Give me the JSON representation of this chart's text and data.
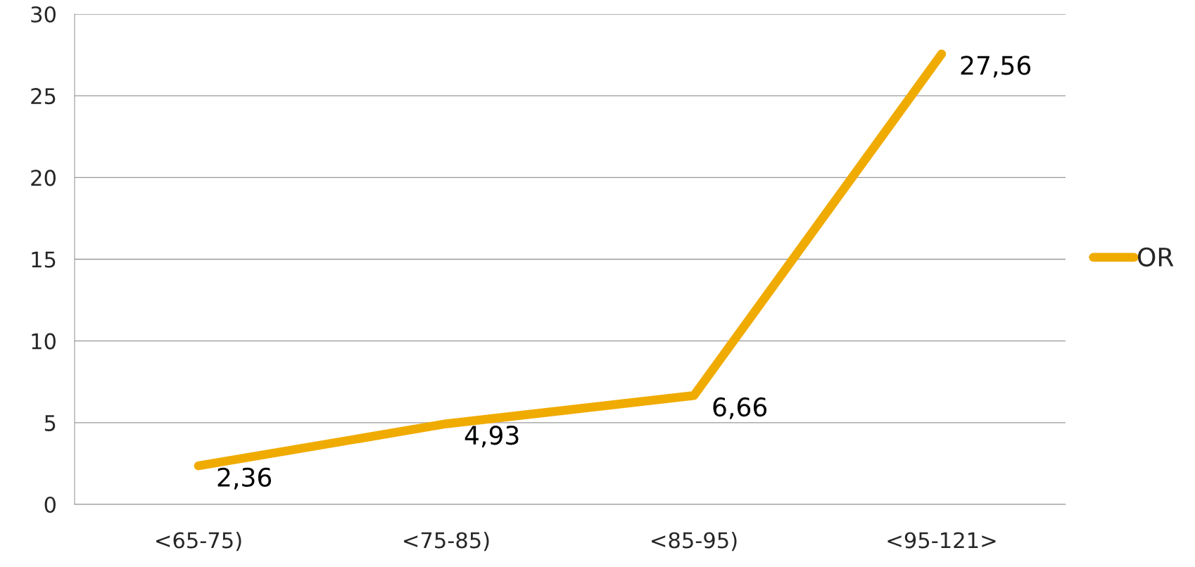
{
  "chart_data": {
    "type": "line",
    "categories": [
      "<65-75)",
      "<75-85)",
      "<85-95)",
      "<95-121>"
    ],
    "series": [
      {
        "name": "OR",
        "color": "#f0ab00",
        "values": [
          2.36,
          4.93,
          6.66,
          27.56
        ],
        "value_labels": [
          "2,36",
          "4,93",
          "6,66",
          "27,56"
        ]
      }
    ],
    "ylim": [
      0,
      30
    ],
    "yticks": [
      0,
      5,
      10,
      15,
      20,
      25,
      30
    ],
    "grid": "y",
    "legend": "right",
    "marker": "none",
    "line_style": "solid"
  }
}
